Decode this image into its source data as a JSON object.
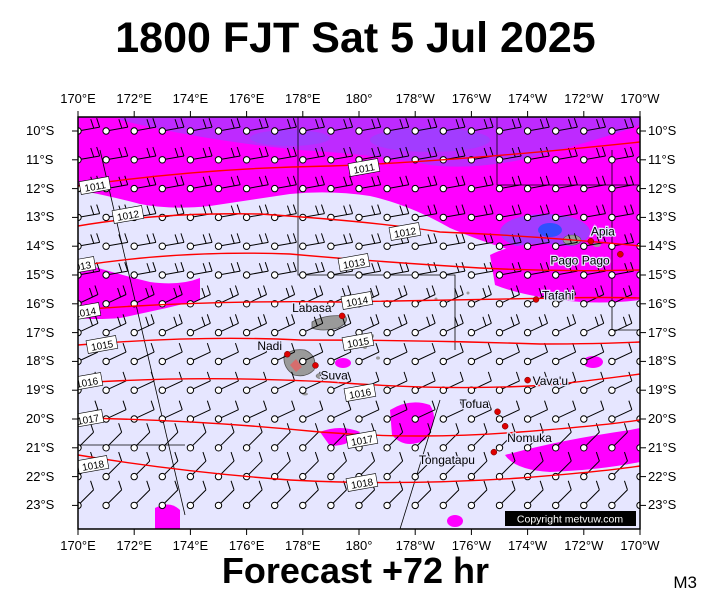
{
  "title": "1800 FJT Sat 5 Jul 2025",
  "footer": "Forecast +72 hr",
  "model_code": "M3",
  "copyright": "Copyright metvuw.com",
  "lon_labels": [
    "170°E",
    "172°E",
    "174°E",
    "176°E",
    "178°E",
    "180°",
    "178°W",
    "176°W",
    "174°W",
    "172°W",
    "170°W"
  ],
  "lat_labels": [
    "10°S",
    "11°S",
    "12°S",
    "13°S",
    "14°S",
    "15°S",
    "16°S",
    "17°S",
    "18°S",
    "19°S",
    "20°S",
    "21°S",
    "22°S",
    "23°S"
  ],
  "isobars": [
    {
      "label": "1011"
    },
    {
      "label": "1012"
    },
    {
      "label": "1013"
    },
    {
      "label": "1014"
    },
    {
      "label": "1015"
    },
    {
      "label": "1016"
    },
    {
      "label": "1017"
    },
    {
      "label": "1018"
    }
  ],
  "places": [
    {
      "name": "Apia",
      "lon": -171.75,
      "lat": -13.83
    },
    {
      "name": "Pago Pago",
      "lon": -170.7,
      "lat": -14.28
    },
    {
      "name": "Tafahi",
      "lon": -173.7,
      "lat": -15.85
    },
    {
      "name": "Labasa",
      "lon": 179.4,
      "lat": -16.42
    },
    {
      "name": "Nadi",
      "lon": 177.45,
      "lat": -17.75
    },
    {
      "name": "Suva",
      "lon": 178.45,
      "lat": -18.14
    },
    {
      "name": "Vava'u",
      "lon": -174.0,
      "lat": -18.65
    },
    {
      "name": "Tofua",
      "lon": -175.07,
      "lat": -19.75
    },
    {
      "name": "Nomuka",
      "lon": -174.8,
      "lat": -20.25
    },
    {
      "name": "Tongatapu",
      "lon": -175.2,
      "lat": -21.15
    }
  ],
  "colors": {
    "background_sea": "#e6e6ff",
    "rain_light": "#ff00ff",
    "rain_medium": "#a23cff",
    "rain_heavy": "#3050ff",
    "isobar": "#ff0000",
    "land": "#9a9a9a",
    "city": "#dd0000"
  }
}
